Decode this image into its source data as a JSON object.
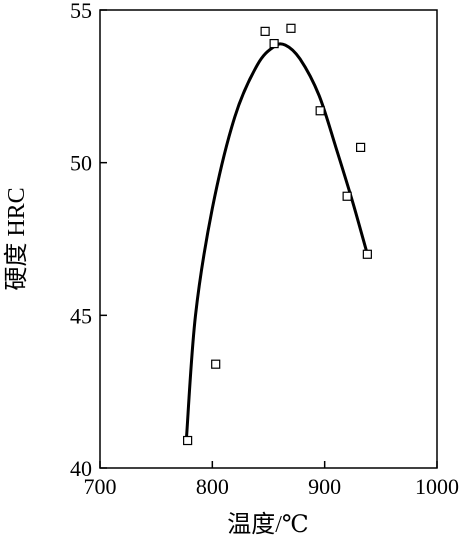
{
  "chart_data": {
    "type": "scatter",
    "title": "",
    "xlabel": "温度/℃",
    "ylabel": "硬度 HRC",
    "xlim": [
      700,
      1000
    ],
    "ylim": [
      40,
      55
    ],
    "xticks": [
      700,
      800,
      900,
      1000
    ],
    "yticks": [
      40,
      45,
      50,
      55
    ],
    "grid": false,
    "legend": "none",
    "marker": "open-square",
    "series": [
      {
        "points": [
          {
            "x": 778,
            "y": 40.9
          },
          {
            "x": 803,
            "y": 43.4
          },
          {
            "x": 847,
            "y": 54.3
          },
          {
            "x": 855,
            "y": 53.9
          },
          {
            "x": 870,
            "y": 54.4
          },
          {
            "x": 896,
            "y": 51.7
          },
          {
            "x": 920,
            "y": 48.9
          },
          {
            "x": 932,
            "y": 50.5
          },
          {
            "x": 938,
            "y": 47.0
          }
        ]
      }
    ],
    "fit_curve": {
      "style": "solid",
      "points": [
        {
          "x": 777,
          "y": 41.0
        },
        {
          "x": 785,
          "y": 45.0
        },
        {
          "x": 800,
          "y": 48.5
        },
        {
          "x": 820,
          "y": 51.5
        },
        {
          "x": 840,
          "y": 53.2
        },
        {
          "x": 855,
          "y": 53.8
        },
        {
          "x": 865,
          "y": 53.85
        },
        {
          "x": 878,
          "y": 53.4
        },
        {
          "x": 895,
          "y": 52.2
        },
        {
          "x": 910,
          "y": 50.5
        },
        {
          "x": 925,
          "y": 48.7
        },
        {
          "x": 938,
          "y": 47.0
        }
      ]
    }
  }
}
